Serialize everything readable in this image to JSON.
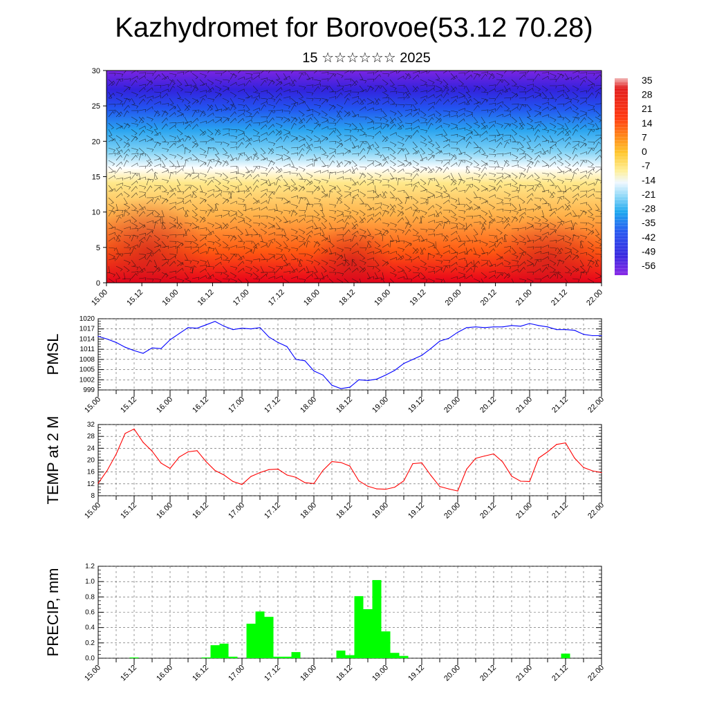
{
  "title": "Kazhydromet for Borovoe(53.12 70.28)",
  "subtitle": "15 ☆☆☆☆☆☆ 2025",
  "time_labels": [
    "15.00",
    "15.12",
    "16.00",
    "16.12",
    "17.00",
    "17.12",
    "18.00",
    "18.12",
    "19.00",
    "19.12",
    "20.00",
    "20.12",
    "21.00",
    "21.12",
    "22.00"
  ],
  "chart_data": [
    {
      "type": "heatmap",
      "ylim": [
        0,
        30
      ],
      "y_ticks": [
        "0",
        "5",
        "10",
        "15",
        "20",
        "25",
        "30"
      ],
      "colorbar_labels": [
        "35",
        "28",
        "21",
        "14",
        "7",
        "0",
        "-7",
        "-14",
        "-21",
        "-28",
        "-35",
        "-42",
        "-49",
        "-56"
      ],
      "colors": {
        "warm": "#e8001a",
        "mid": "#ffe88a",
        "cold": "#6a1fe0"
      },
      "wind_barbs": true
    },
    {
      "type": "line",
      "ylabel": "PMSL",
      "ylim": [
        999,
        1020
      ],
      "y_ticks": [
        "1020",
        "1017",
        "1014",
        "1011",
        "1008",
        "1005",
        "1002",
        "999"
      ],
      "color": "#0000ff",
      "x": [
        0,
        3,
        6,
        9,
        12,
        15,
        18,
        21,
        24,
        27,
        30,
        33,
        36,
        39,
        42,
        45,
        48,
        51,
        54,
        57,
        60,
        63,
        66,
        69,
        72,
        75,
        78,
        81,
        84,
        87,
        90,
        93,
        96,
        99,
        102,
        105,
        108,
        111,
        114,
        117,
        120,
        123,
        126,
        129,
        132,
        135,
        138,
        141,
        144,
        147,
        150,
        153,
        156,
        159,
        162,
        165,
        168
      ],
      "values": [
        1014.8,
        1014.0,
        1013.0,
        1011.6,
        1010.6,
        1009.8,
        1011.4,
        1011.2,
        1013.8,
        1015.6,
        1017.4,
        1017.2,
        1018.2,
        1019.2,
        1017.8,
        1016.8,
        1017.2,
        1017.0,
        1017.4,
        1014.6,
        1013.0,
        1011.8,
        1008.0,
        1007.6,
        1004.6,
        1003.4,
        1000.4,
        999.4,
        999.8,
        1002.0,
        1001.8,
        1002.2,
        1003.4,
        1004.8,
        1006.8,
        1008.0,
        1009.2,
        1011.2,
        1013.4,
        1014.2,
        1016.0,
        1017.4,
        1017.6,
        1017.4,
        1017.6,
        1017.6,
        1018.0,
        1017.8,
        1018.6,
        1018.0,
        1017.6,
        1016.8,
        1016.8,
        1016.6,
        1015.4,
        1015.0,
        1015.0
      ]
    },
    {
      "type": "line",
      "ylabel": "TEMP at 2 M",
      "ylim": [
        8,
        32
      ],
      "y_ticks": [
        "32",
        "28",
        "24",
        "20",
        "16",
        "12",
        "8"
      ],
      "color": "#ff0000",
      "x": [
        0,
        3,
        6,
        9,
        12,
        15,
        18,
        21,
        24,
        27,
        30,
        33,
        36,
        39,
        42,
        45,
        48,
        51,
        54,
        57,
        60,
        63,
        66,
        69,
        72,
        75,
        78,
        81,
        84,
        87,
        90,
        93,
        96,
        99,
        102,
        105,
        108,
        111,
        114,
        117,
        120,
        123,
        126,
        129,
        132,
        135,
        138,
        141,
        144,
        147,
        150,
        153,
        156,
        159,
        162,
        165,
        168
      ],
      "values": [
        12.2,
        16.5,
        22.0,
        29.0,
        30.5,
        26.0,
        23.0,
        19.0,
        17.2,
        21.0,
        22.8,
        23.2,
        19.5,
        16.5,
        15.0,
        12.8,
        11.8,
        14.5,
        15.8,
        16.8,
        17.0,
        15.0,
        14.2,
        12.4,
        12.1,
        16.5,
        19.5,
        19.2,
        18.0,
        13.0,
        11.2,
        10.3,
        10.2,
        10.9,
        13.0,
        18.8,
        19.1,
        14.9,
        11.1,
        10.3,
        9.6,
        17.0,
        20.6,
        21.4,
        22.1,
        19.4,
        14.6,
        12.9,
        12.8,
        20.7,
        22.8,
        25.3,
        25.8,
        20.7,
        17.5,
        16.4,
        15.8
      ]
    },
    {
      "type": "bar",
      "ylabel": "PRECIP, mm",
      "ylim": [
        0,
        1.2
      ],
      "y_ticks": [
        "1.2",
        "1.0",
        "0.8",
        "0.6",
        "0.4",
        "0.2",
        "0.0"
      ],
      "color": "#00ff00",
      "x": [
        0,
        3,
        6,
        9,
        12,
        15,
        18,
        21,
        24,
        27,
        30,
        33,
        36,
        39,
        42,
        45,
        48,
        51,
        54,
        57,
        60,
        63,
        66,
        69,
        72,
        75,
        78,
        81,
        84,
        87,
        90,
        93,
        96,
        99,
        102,
        105,
        108,
        111,
        114,
        117,
        120,
        123,
        126,
        129,
        132,
        135,
        138,
        141,
        144,
        147,
        150,
        153,
        156,
        159,
        162,
        165,
        168
      ],
      "values": [
        0,
        0,
        0,
        0,
        0.01,
        0,
        0,
        0,
        0,
        0,
        0,
        0,
        0.01,
        0.17,
        0.19,
        0.02,
        0,
        0.45,
        0.61,
        0.54,
        0.02,
        0.02,
        0.08,
        0,
        0,
        0,
        0,
        0.1,
        0.04,
        0.81,
        0.64,
        1.02,
        0.35,
        0.07,
        0.03,
        0,
        0,
        0,
        0,
        0,
        0,
        0,
        0,
        0,
        0,
        0,
        0,
        0,
        0,
        0,
        0,
        0,
        0.06,
        0,
        0,
        0,
        0
      ]
    }
  ]
}
